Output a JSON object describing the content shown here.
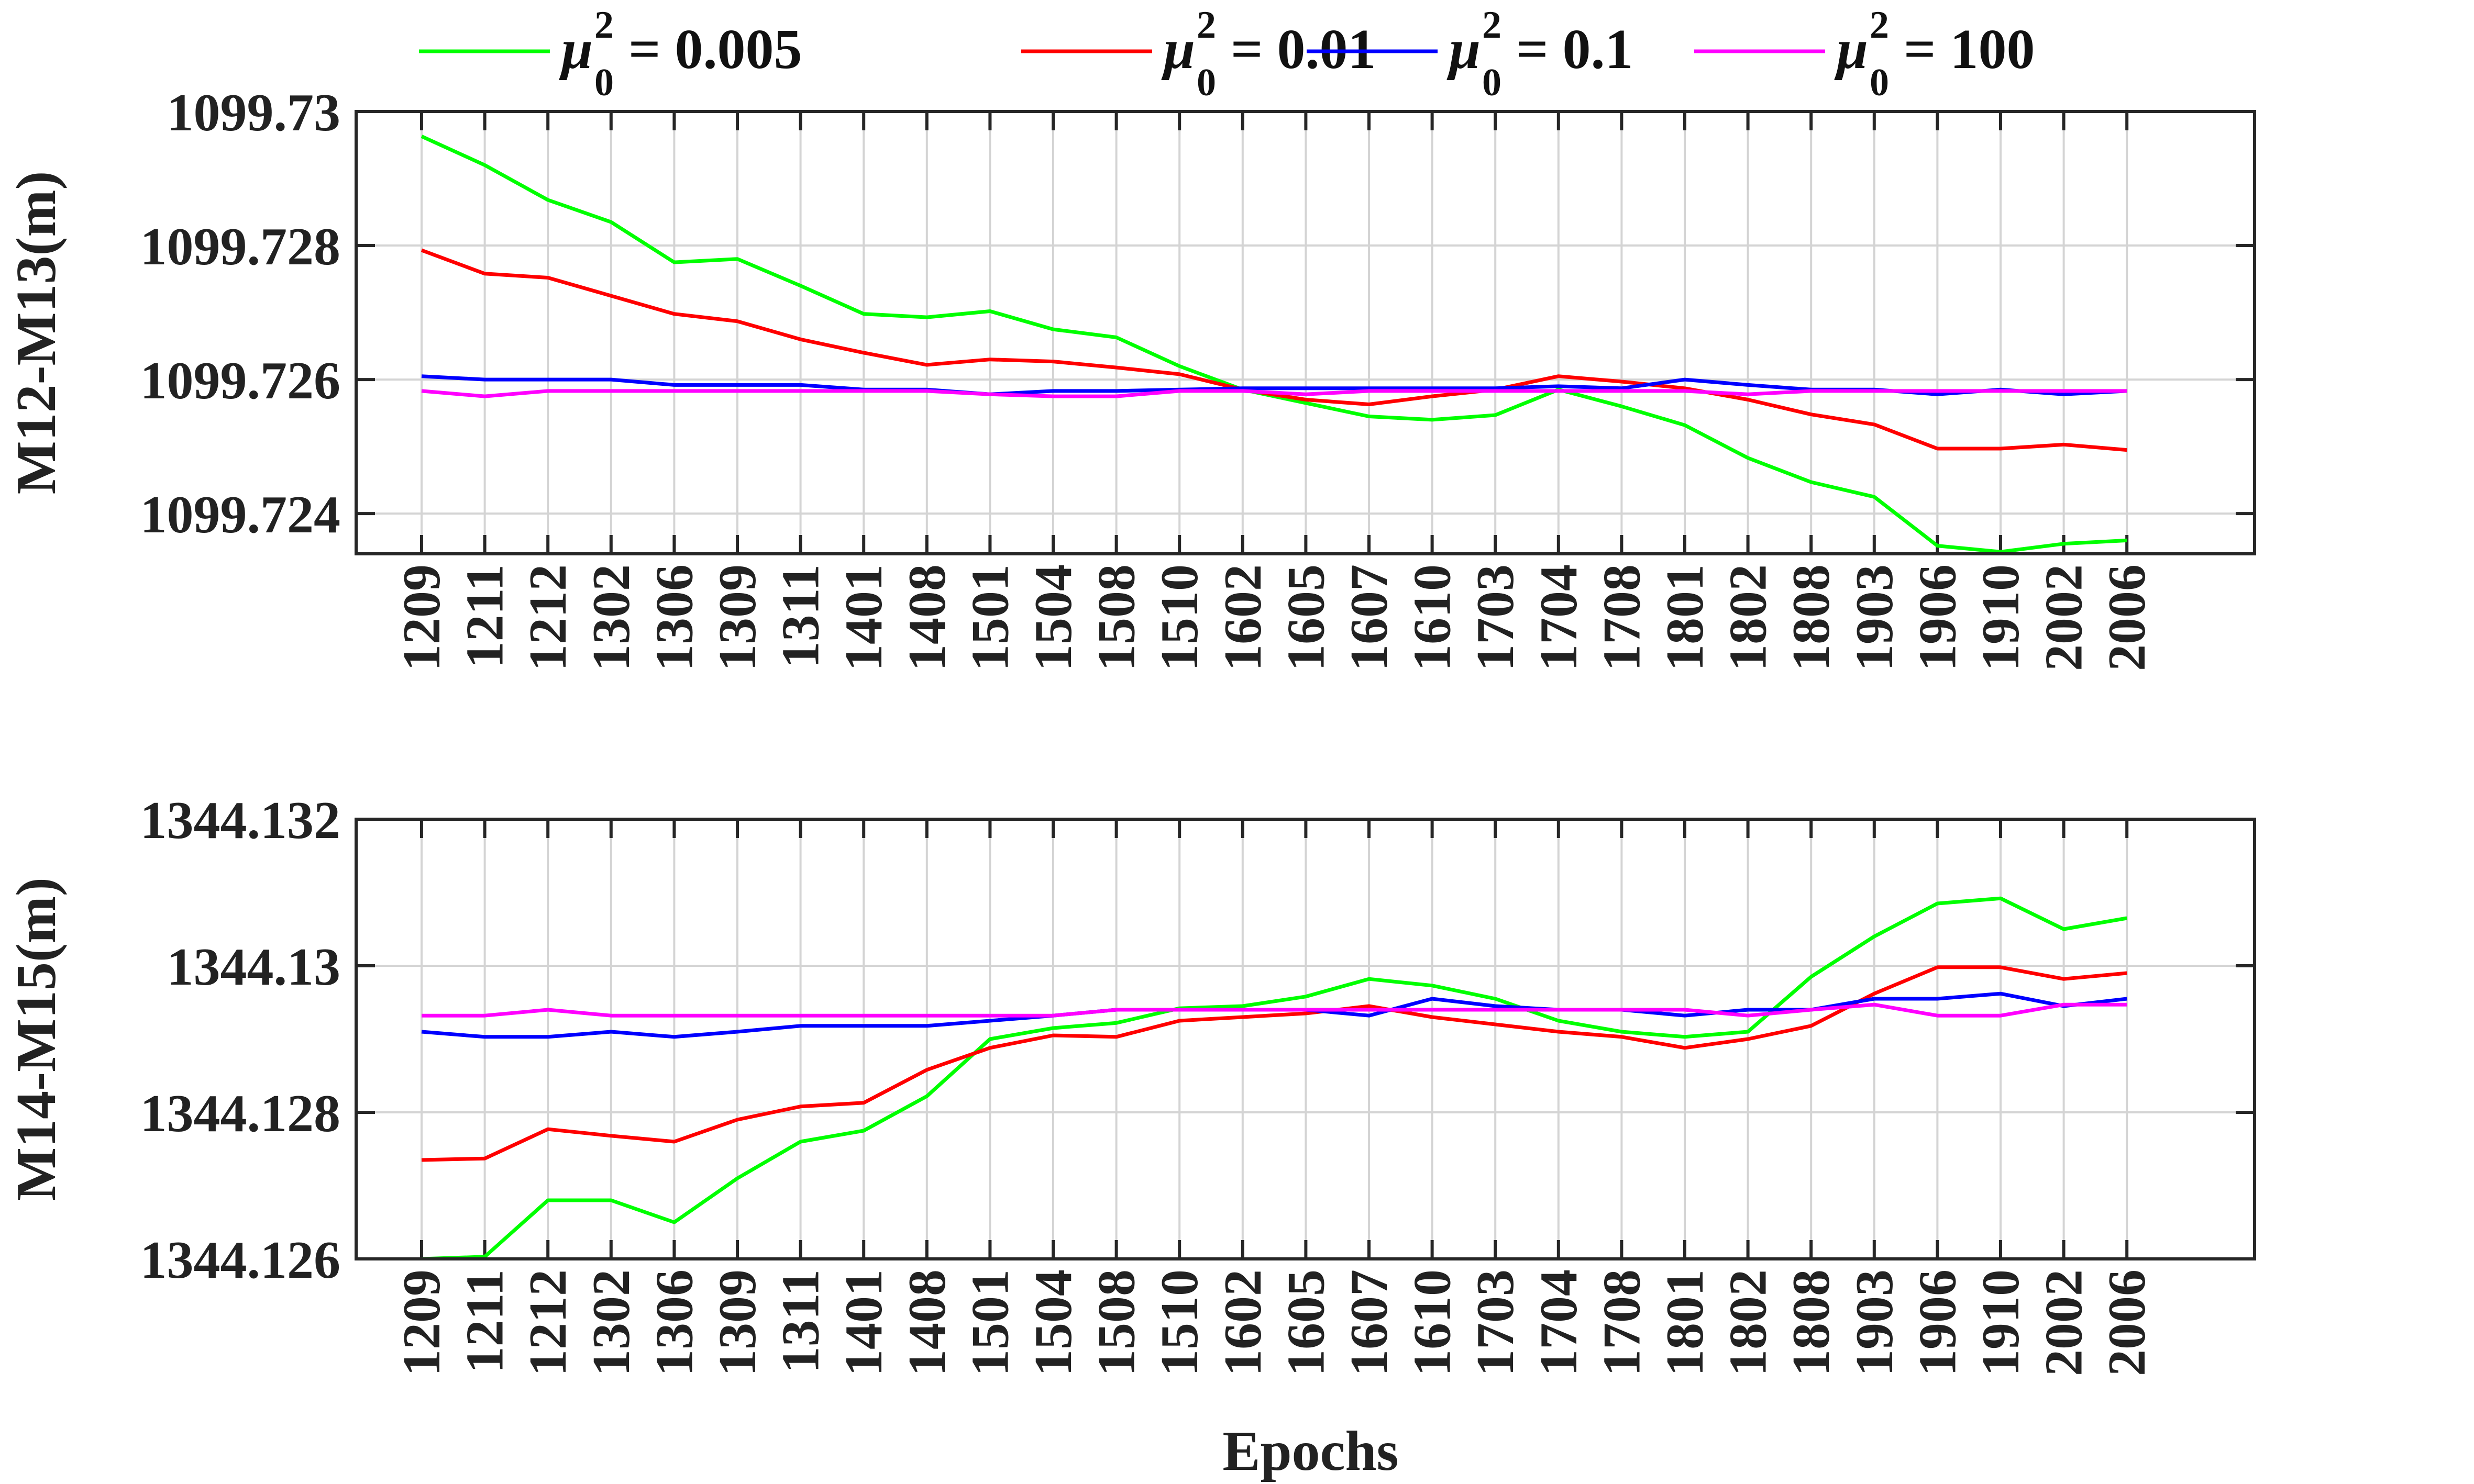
{
  "colors": {
    "green": "#00ff00",
    "red": "#ff0000",
    "blue": "#0000ff",
    "magenta": "#ff00ff",
    "grid": "#d4d4d4",
    "axis": "#262626"
  },
  "legend": {
    "placement": "top-center",
    "entries": [
      {
        "symbol": "μ",
        "sub": "0",
        "sup": "2",
        "value": "= 0.005",
        "color": "#00ff00"
      },
      {
        "symbol": "μ",
        "sub": "0",
        "sup": "2",
        "value": "= 0.01",
        "color": "#ff0000"
      },
      {
        "symbol": "μ",
        "sub": "0",
        "sup": "2",
        "value": "= 0.1",
        "color": "#0000ff"
      },
      {
        "symbol": "μ",
        "sub": "0",
        "sup": "2",
        "value": "= 100",
        "color": "#ff00ff"
      }
    ]
  },
  "chart_data": [
    {
      "type": "line",
      "xlabel": "",
      "ylabel": "M12-M13(m)",
      "grid": true,
      "categories": [
        "1209",
        "1211",
        "1212",
        "1302",
        "1306",
        "1309",
        "1311",
        "1401",
        "1408",
        "1501",
        "1504",
        "1508",
        "1510",
        "1602",
        "1605",
        "1607",
        "1610",
        "1703",
        "1704",
        "1708",
        "1801",
        "1802",
        "1808",
        "1903",
        "1906",
        "1910",
        "2002",
        "2006"
      ],
      "ylim": [
        1099.7234,
        1099.73
      ],
      "yticks": [
        1099.724,
        1099.726,
        1099.728,
        1099.73
      ],
      "ytick_labels": [
        "1099.724",
        "1099.726",
        "1099.728",
        "1099.73"
      ],
      "series": [
        {
          "color": "#00ff00",
          "values": [
            1099.72963,
            1099.7292,
            1099.72868,
            1099.72835,
            1099.72775,
            1099.7278,
            1099.7274,
            1099.72698,
            1099.72693,
            1099.72702,
            1099.72675,
            1099.72663,
            1099.7262,
            1099.72585,
            1099.72565,
            1099.72545,
            1099.7254,
            1099.72547,
            1099.72585,
            1099.7256,
            1099.72532,
            1099.72483,
            1099.72447,
            1099.72425,
            1099.72352,
            1099.72343,
            1099.72355,
            1099.7236
          ]
        },
        {
          "color": "#ff0000",
          "values": [
            1099.72793,
            1099.72758,
            1099.72752,
            1099.72725,
            1099.72698,
            1099.72687,
            1099.7266,
            1099.7264,
            1099.72622,
            1099.7263,
            1099.72627,
            1099.72618,
            1099.72608,
            1099.72585,
            1099.7257,
            1099.72563,
            1099.72575,
            1099.72585,
            1099.72605,
            1099.72597,
            1099.72587,
            1099.7257,
            1099.72548,
            1099.72533,
            1099.72497,
            1099.72497,
            1099.72503,
            1099.72495
          ]
        },
        {
          "color": "#0000ff",
          "values": [
            1099.72605,
            1099.726,
            1099.726,
            1099.726,
            1099.72592,
            1099.72592,
            1099.72592,
            1099.72585,
            1099.72585,
            1099.72578,
            1099.72583,
            1099.72583,
            1099.72585,
            1099.72587,
            1099.72587,
            1099.72587,
            1099.72587,
            1099.72587,
            1099.7259,
            1099.72587,
            1099.726,
            1099.72592,
            1099.72585,
            1099.72585,
            1099.72578,
            1099.72585,
            1099.72578,
            1099.72583
          ]
        },
        {
          "color": "#ff00ff",
          "values": [
            1099.72583,
            1099.72575,
            1099.72583,
            1099.72583,
            1099.72583,
            1099.72583,
            1099.72583,
            1099.72583,
            1099.72583,
            1099.72578,
            1099.72575,
            1099.72575,
            1099.72583,
            1099.72583,
            1099.72578,
            1099.72583,
            1099.72583,
            1099.72583,
            1099.72583,
            1099.72583,
            1099.72583,
            1099.72578,
            1099.72583,
            1099.72583,
            1099.72583,
            1099.72583,
            1099.72583,
            1099.72583
          ]
        }
      ]
    },
    {
      "type": "line",
      "xlabel": "Epochs",
      "ylabel": "M14-M15(m)",
      "grid": true,
      "categories": [
        "1209",
        "1211",
        "1212",
        "1302",
        "1306",
        "1309",
        "1311",
        "1401",
        "1408",
        "1501",
        "1504",
        "1508",
        "1510",
        "1602",
        "1605",
        "1607",
        "1610",
        "1703",
        "1704",
        "1708",
        "1801",
        "1802",
        "1808",
        "1903",
        "1906",
        "1910",
        "2002",
        "2006"
      ],
      "ylim": [
        1344.126,
        1344.132
      ],
      "yticks": [
        1344.126,
        1344.128,
        1344.13,
        1344.132
      ],
      "ytick_labels": [
        "1344.126",
        "1344.128",
        "1344.13",
        "1344.132"
      ],
      "series": [
        {
          "color": "#00ff00",
          "values": [
            1344.126,
            1344.12603,
            1344.1268,
            1344.1268,
            1344.1265,
            1344.1271,
            1344.1276,
            1344.12775,
            1344.12822,
            1344.129,
            1344.12915,
            1344.12922,
            1344.12942,
            1344.12945,
            1344.12958,
            1344.12982,
            1344.12973,
            1344.12955,
            1344.12925,
            1344.1291,
            1344.12903,
            1344.1291,
            1344.12985,
            1344.1304,
            1344.13085,
            1344.13092,
            1344.1305,
            1344.13065
          ]
        },
        {
          "color": "#ff0000",
          "values": [
            1344.12735,
            1344.12737,
            1344.12777,
            1344.12768,
            1344.1276,
            1344.1279,
            1344.12808,
            1344.12813,
            1344.12858,
            1344.12888,
            1344.12905,
            1344.12903,
            1344.12925,
            1344.1293,
            1344.12935,
            1344.12945,
            1344.1293,
            1344.1292,
            1344.1291,
            1344.12903,
            1344.12888,
            1344.129,
            1344.12918,
            1344.12962,
            1344.12998,
            1344.12998,
            1344.12982,
            1344.1299
          ]
        },
        {
          "color": "#0000ff",
          "values": [
            1344.1291,
            1344.12903,
            1344.12903,
            1344.1291,
            1344.12903,
            1344.1291,
            1344.12918,
            1344.12918,
            1344.12918,
            1344.12925,
            1344.12932,
            1344.1294,
            1344.1294,
            1344.1294,
            1344.1294,
            1344.12932,
            1344.12955,
            1344.12945,
            1344.1294,
            1344.1294,
            1344.12932,
            1344.1294,
            1344.1294,
            1344.12955,
            1344.12955,
            1344.12962,
            1344.12945,
            1344.12955
          ]
        },
        {
          "color": "#ff00ff",
          "values": [
            1344.12932,
            1344.12932,
            1344.1294,
            1344.12932,
            1344.12932,
            1344.12932,
            1344.12932,
            1344.12932,
            1344.12932,
            1344.12932,
            1344.12932,
            1344.1294,
            1344.1294,
            1344.1294,
            1344.1294,
            1344.1294,
            1344.1294,
            1344.1294,
            1344.1294,
            1344.1294,
            1344.1294,
            1344.12932,
            1344.1294,
            1344.12947,
            1344.12932,
            1344.12932,
            1344.12947,
            1344.12947
          ]
        }
      ]
    }
  ]
}
